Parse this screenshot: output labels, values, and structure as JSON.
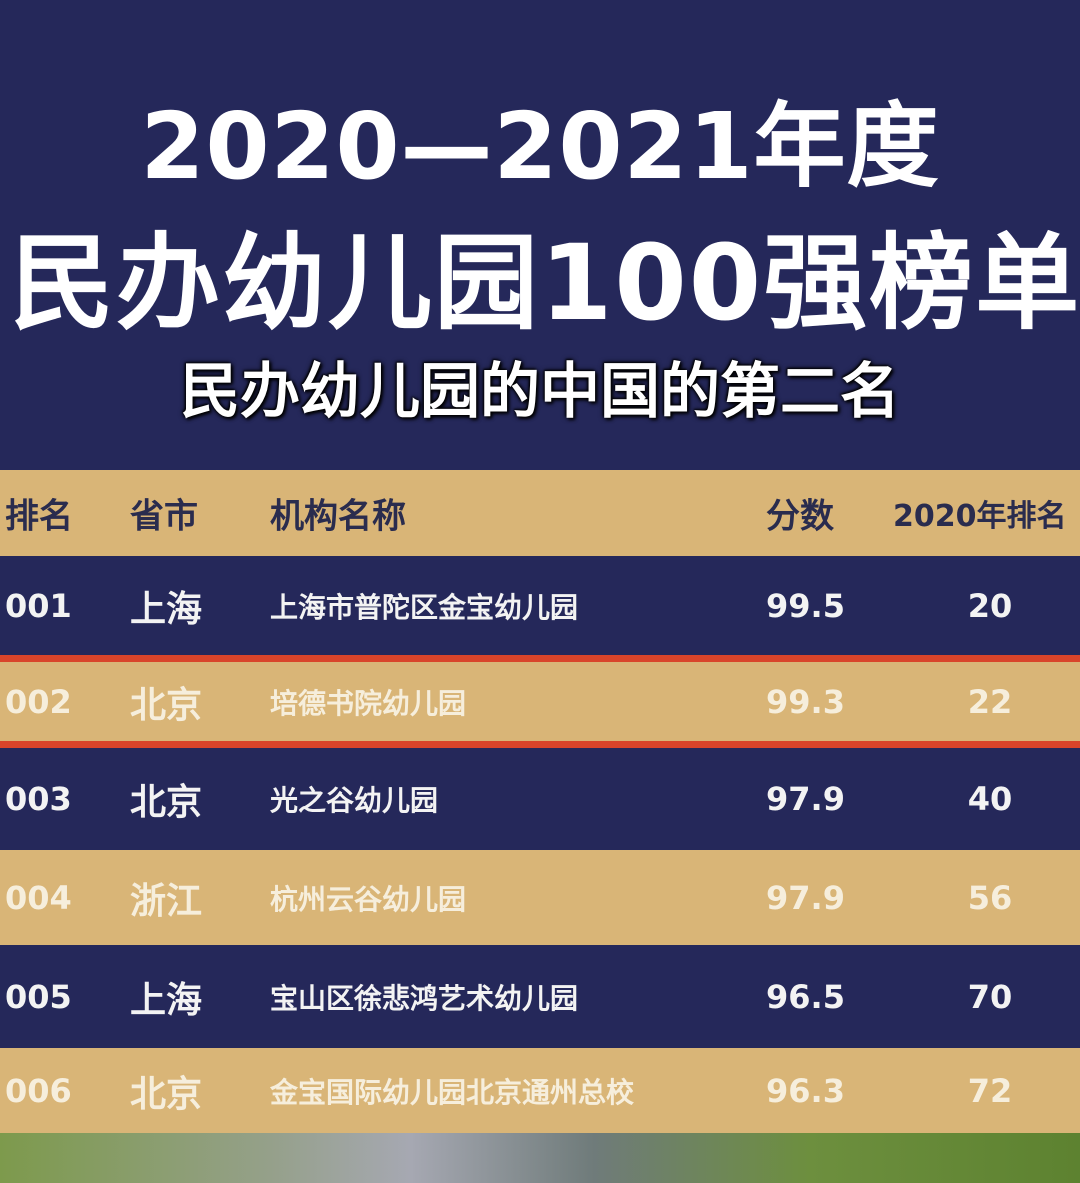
{
  "title": {
    "line1": "2020—2021年度",
    "line2": "民办幼儿园100强榜单"
  },
  "table": {
    "headers": [
      "排名",
      "省市",
      "机构名称",
      "分数",
      "2020年排名"
    ],
    "rows": [
      {
        "rank": "001",
        "province": "上海",
        "name": "上海市普陀区金宝幼儿园",
        "score": "99.5",
        "prev_rank": "20"
      },
      {
        "rank": "002",
        "province": "北京",
        "name": "培德书院幼儿园",
        "score": "99.3",
        "prev_rank": "22",
        "highlighted": true
      },
      {
        "rank": "003",
        "province": "北京",
        "name": "光之谷幼儿园",
        "score": "97.9",
        "prev_rank": "40"
      },
      {
        "rank": "004",
        "province": "浙江",
        "name": "杭州云谷幼儿园",
        "score": "97.9",
        "prev_rank": "56"
      },
      {
        "rank": "005",
        "province": "上海",
        "name": "宝山区徐悲鸿艺术幼儿园",
        "score": "96.5",
        "prev_rank": "70"
      },
      {
        "rank": "006",
        "province": "北京",
        "name": "金宝国际幼儿园北京通州总校",
        "score": "96.3",
        "prev_rank": "72"
      }
    ]
  },
  "subtitle": "民办幼儿园的中国的第二名",
  "colors": {
    "navy": "#25285a",
    "tan": "#d9b577",
    "highlight_border": "#d9442a"
  }
}
